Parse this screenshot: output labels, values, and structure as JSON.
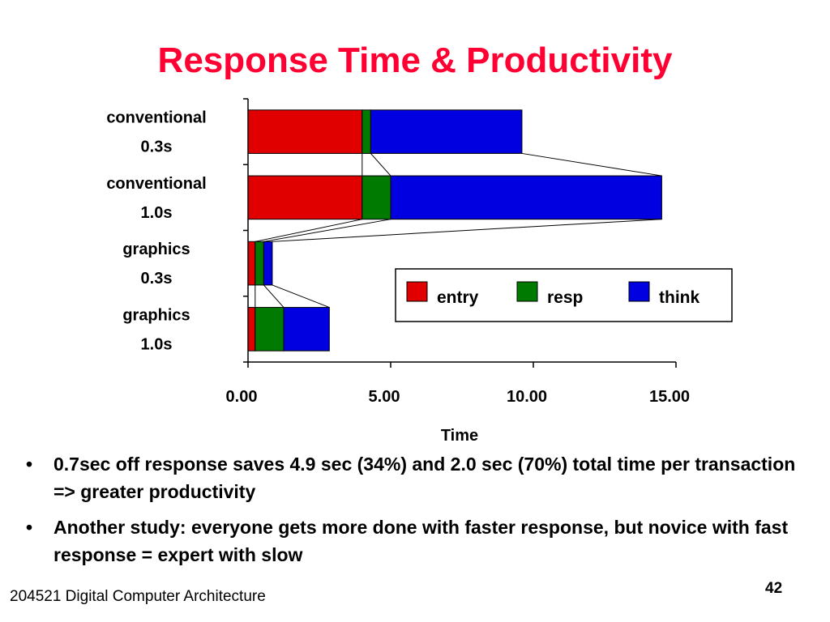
{
  "slide": {
    "title": "Response Time & Productivity",
    "footer": "204521 Digital Computer Architecture",
    "page_number": "42",
    "bullets": [
      "0.7sec off response saves 4.9 sec (34%) and 2.0 sec (70%) total time per transaction => greater productivity",
      "Another study: everyone gets more done with faster response, but novice with fast response = expert with slow"
    ],
    "bullet_symbol": "•"
  },
  "chart_data": {
    "type": "bar",
    "orientation": "horizontal",
    "stacked": true,
    "categories": [
      [
        "conventional",
        "0.3s"
      ],
      [
        "conventional",
        "1.0s"
      ],
      [
        "graphics",
        "0.3s"
      ],
      [
        "graphics",
        "1.0s"
      ]
    ],
    "series": [
      {
        "name": "entry",
        "color": "#e00000",
        "values": [
          4.0,
          4.0,
          0.25,
          0.25
        ]
      },
      {
        "name": "resp",
        "color": "#007a00",
        "values": [
          0.3,
          1.0,
          0.3,
          1.0
        ]
      },
      {
        "name": "think",
        "color": "#0000e0",
        "values": [
          5.3,
          9.5,
          0.3,
          1.6
        ]
      }
    ],
    "xlabel": "Time",
    "ylabel": "",
    "xlim": [
      0,
      15
    ],
    "xticks": [
      "0.00",
      "5.00",
      "10.00",
      "15.00"
    ],
    "grid": false,
    "legend": "inside-right",
    "connector_lines": true
  }
}
